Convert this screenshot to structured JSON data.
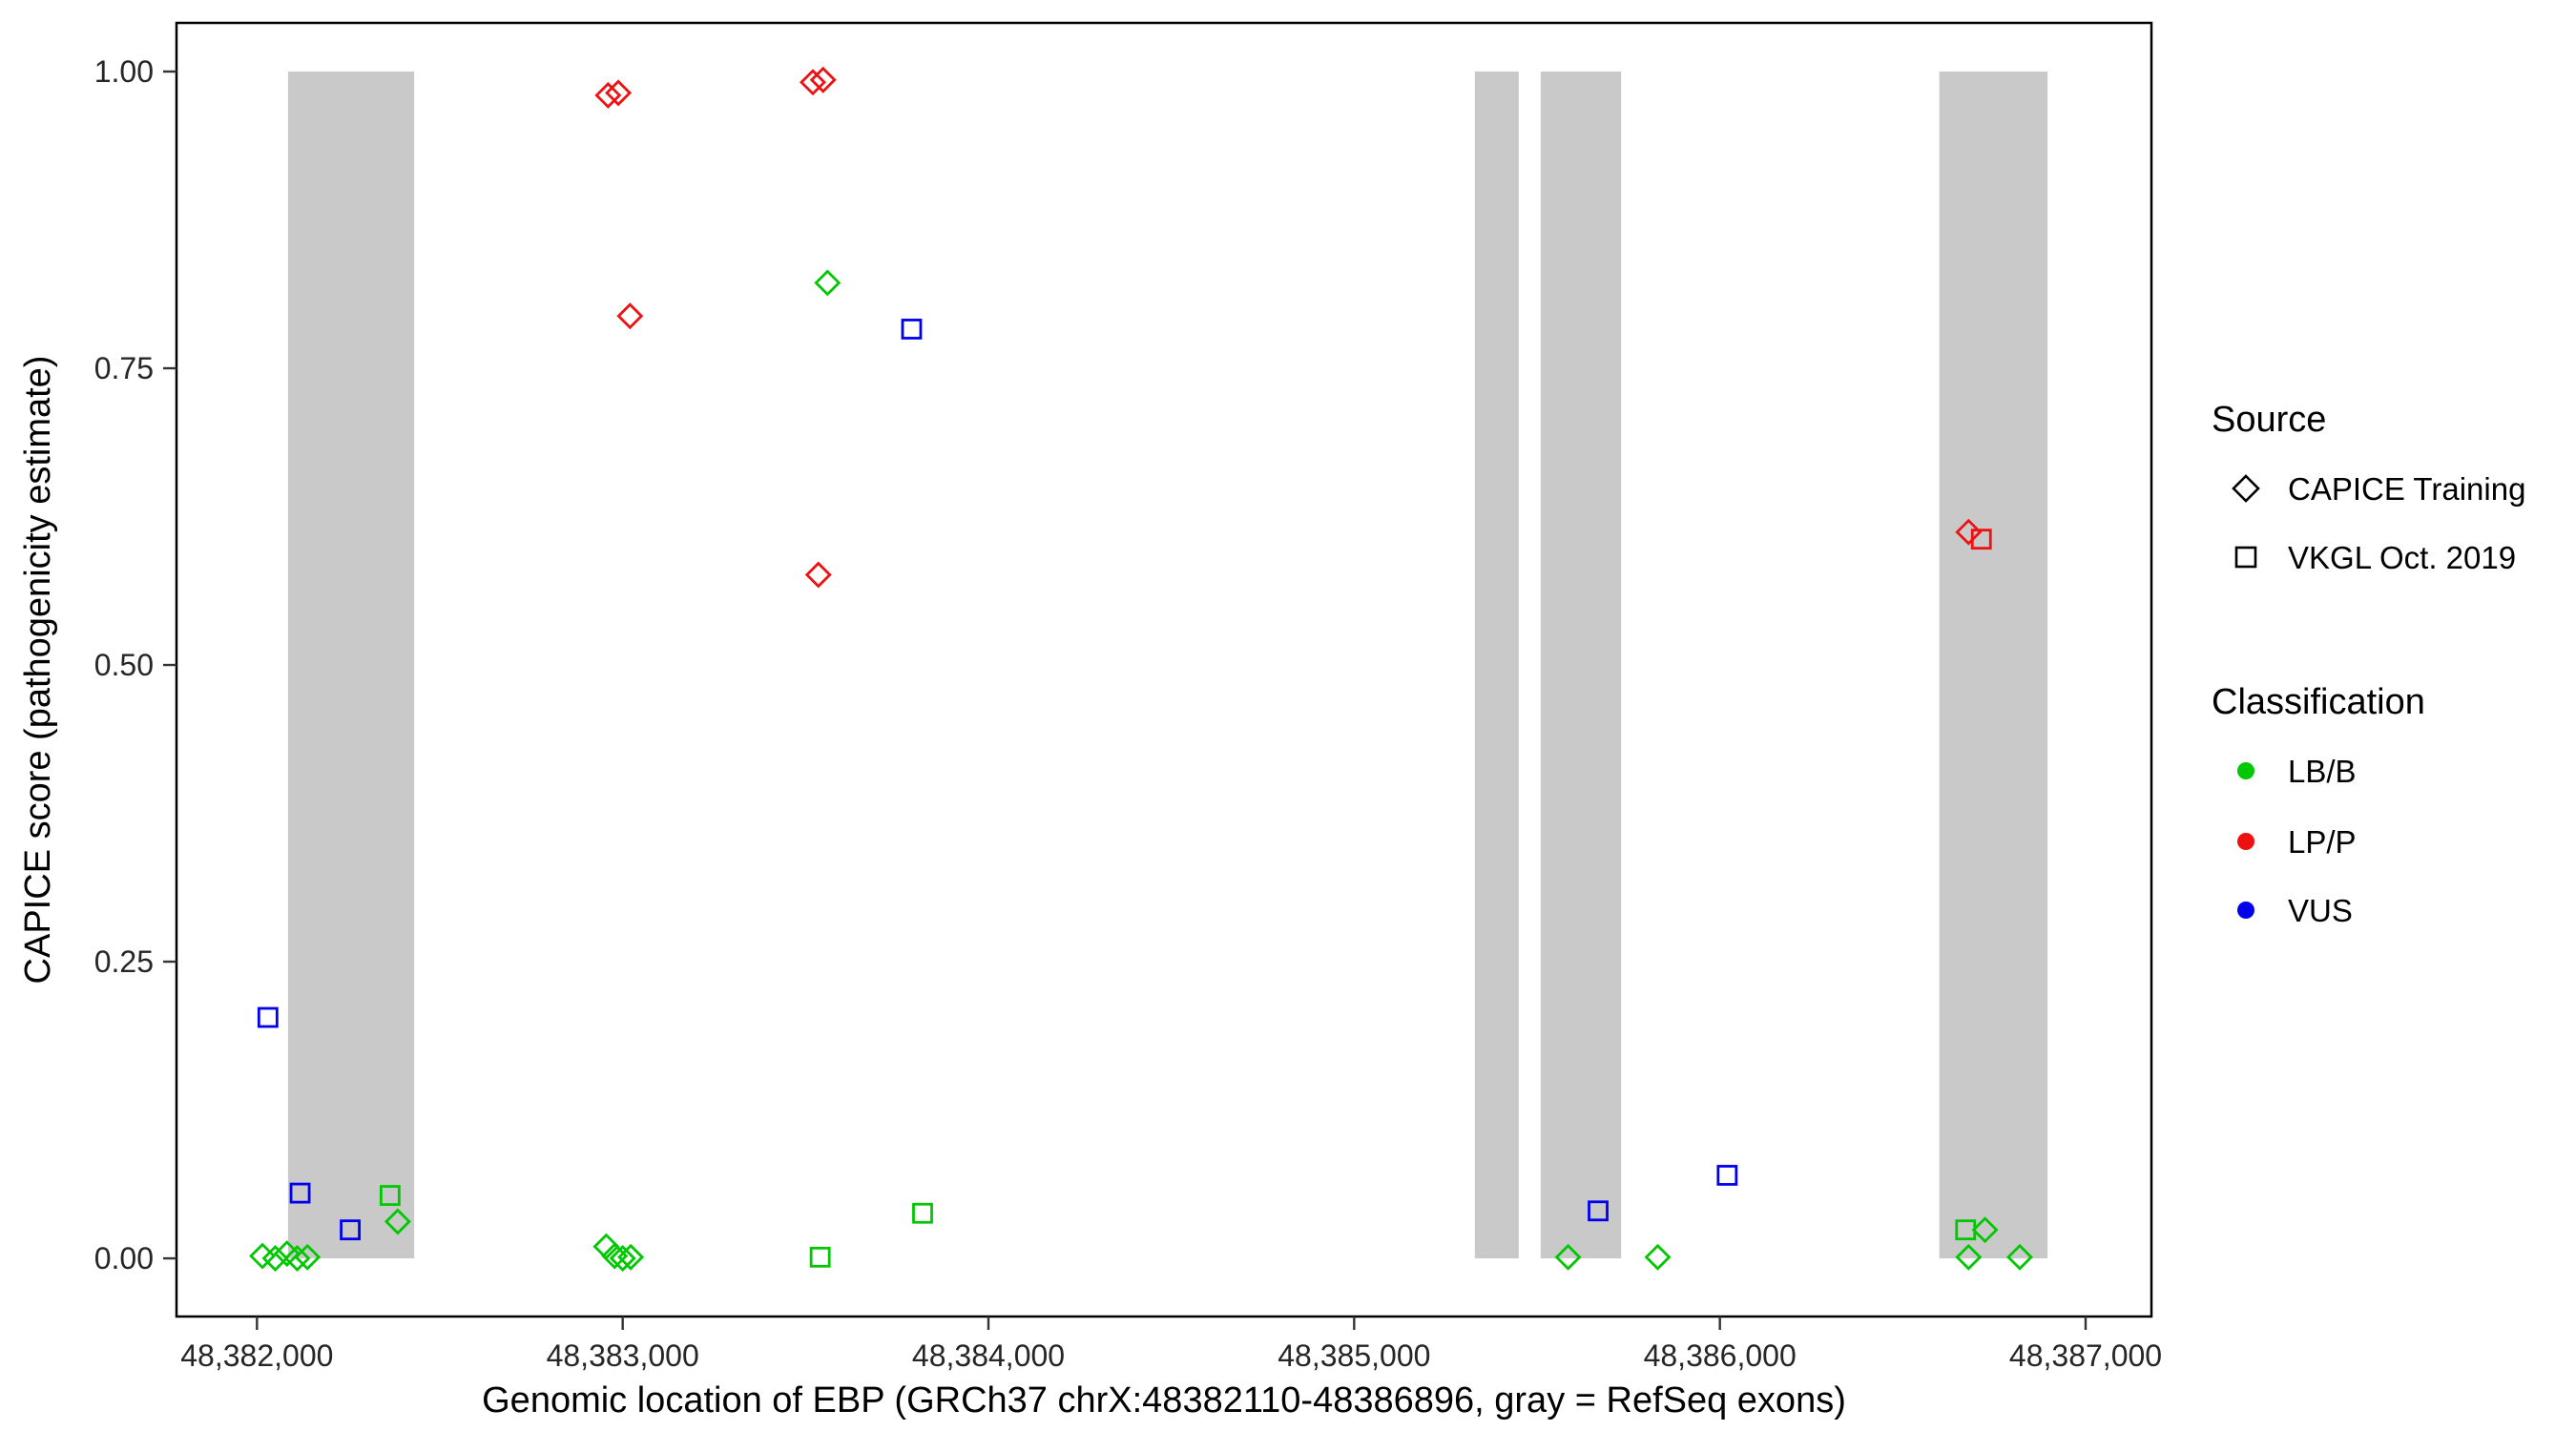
{
  "chart_data": {
    "type": "scatter",
    "title": "",
    "xlabel": "Genomic location of EBP (GRCh37 chrX:48382110-48386896, gray = RefSeq exons)",
    "ylabel": "CAPICE score (pathogenicity estimate)",
    "xlim": [
      48381780,
      48387180
    ],
    "ylim": [
      -0.049,
      1.041
    ],
    "grid": false,
    "colors": {
      "lbb": "#00C800",
      "lpp": "#EE1111",
      "vus": "#0000EE",
      "exon": "#C9C9C9",
      "panel_border": "#000000"
    },
    "x_axis": {
      "ticks": [
        {
          "value": 48382000,
          "label": "48,382,000"
        },
        {
          "value": 48383000,
          "label": "48,383,000"
        },
        {
          "value": 48384000,
          "label": "48,384,000"
        },
        {
          "value": 48385000,
          "label": "48,385,000"
        },
        {
          "value": 48386000,
          "label": "48,386,000"
        },
        {
          "value": 48387000,
          "label": "48,387,000"
        }
      ]
    },
    "y_axis": {
      "ticks": [
        {
          "value": 0.0,
          "label": "0.00"
        },
        {
          "value": 0.25,
          "label": "0.25"
        },
        {
          "value": 0.5,
          "label": "0.50"
        },
        {
          "value": 0.75,
          "label": "0.75"
        },
        {
          "value": 1.0,
          "label": "1.00"
        }
      ]
    },
    "exon_bands": [
      {
        "start": 48382085,
        "end": 48382430
      },
      {
        "start": 48385330,
        "end": 48385450
      },
      {
        "start": 48385510,
        "end": 48385730
      },
      {
        "start": 48386600,
        "end": 48386896
      }
    ],
    "series": [
      {
        "name": "CAPICE Training / LP_P",
        "source": "CAPICE Training",
        "classification": "LP/P",
        "marker": "diamond",
        "color": "#EE1111",
        "points": [
          [
            48382960,
            0.98
          ],
          [
            48382988,
            0.982
          ],
          [
            48383020,
            0.794
          ],
          [
            48383520,
            0.991
          ],
          [
            48383548,
            0.993
          ],
          [
            48383535,
            0.576
          ],
          [
            48386680,
            0.612
          ]
        ]
      },
      {
        "name": "CAPICE Training / LB_B",
        "source": "CAPICE Training",
        "classification": "LB/B",
        "marker": "diamond",
        "color": "#00C800",
        "points": [
          [
            48382015,
            0.002
          ],
          [
            48382050,
            0.0
          ],
          [
            48382082,
            0.004
          ],
          [
            48382110,
            0.0
          ],
          [
            48382138,
            0.001
          ],
          [
            48382385,
            0.031
          ],
          [
            48382955,
            0.01
          ],
          [
            48382978,
            0.002
          ],
          [
            48383000,
            0.0
          ],
          [
            48383022,
            0.001
          ],
          [
            48383560,
            0.822
          ],
          [
            48385585,
            0.001
          ],
          [
            48385830,
            0.001
          ],
          [
            48386725,
            0.024
          ],
          [
            48386680,
            0.001
          ],
          [
            48386820,
            0.001
          ]
        ]
      },
      {
        "name": "VKGL Oct. 2019 / VUS",
        "source": "VKGL Oct. 2019",
        "classification": "VUS",
        "marker": "square",
        "color": "#0000EE",
        "points": [
          [
            48382030,
            0.203
          ],
          [
            48382118,
            0.055
          ],
          [
            48382255,
            0.024
          ],
          [
            48383790,
            0.783
          ],
          [
            48385667,
            0.04
          ],
          [
            48386020,
            0.07
          ]
        ]
      },
      {
        "name": "VKGL Oct. 2019 / LB_B",
        "source": "VKGL Oct. 2019",
        "classification": "LB/B",
        "marker": "square",
        "color": "#00C800",
        "points": [
          [
            48382364,
            0.053
          ],
          [
            48383540,
            0.001
          ],
          [
            48383820,
            0.038
          ],
          [
            48386672,
            0.024
          ]
        ]
      },
      {
        "name": "VKGL Oct. 2019 / LP_P",
        "source": "VKGL Oct. 2019",
        "classification": "LP/P",
        "marker": "square",
        "color": "#EE1111",
        "points": [
          [
            48386715,
            0.606
          ]
        ]
      }
    ],
    "legend": {
      "position": "right",
      "source": {
        "title": "Source",
        "items": [
          {
            "label": "CAPICE Training",
            "marker": "diamond"
          },
          {
            "label": "VKGL Oct. 2019",
            "marker": "square"
          }
        ]
      },
      "classification": {
        "title": "Classification",
        "items": [
          {
            "label": "LB/B",
            "color": "#00C800"
          },
          {
            "label": "LP/P",
            "color": "#EE1111"
          },
          {
            "label": "VUS",
            "color": "#0000EE"
          }
        ]
      }
    }
  }
}
